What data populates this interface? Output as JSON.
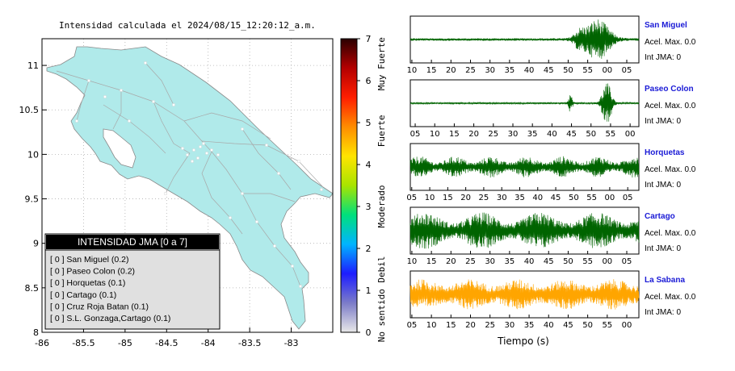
{
  "map": {
    "title": "Intensidad calculada el 2024/08/15_12:20:12_a.m.",
    "x_ticks": [
      "-86",
      "-85.5",
      "-85",
      "-84.5",
      "-84",
      "-83.5",
      "-83"
    ],
    "y_ticks": [
      "11",
      "10.5",
      "10",
      "9.5",
      "9",
      "8.5",
      "8"
    ],
    "xlim": [
      -86,
      -82.5
    ],
    "ylim": [
      8,
      11.3
    ],
    "land_color": "#b0eaea",
    "legend": {
      "title": "INTENSIDAD JMA [0 a 7]",
      "items": [
        "[ 0 ]  San Miguel (0.2)",
        "[ 0 ]  Paseo Colon (0.2)",
        "[ 0 ]  Horquetas (0.1)",
        "[ 0 ]  Cartago (0.1)",
        "[ 0 ]  Cruz Roja Batan (0.1)",
        "[ 0 ]  S.L. Gonzaga,Cartago (0.1)"
      ]
    }
  },
  "colorbar": {
    "ticks": [
      "7",
      "6",
      "5",
      "4",
      "3",
      "2",
      "1",
      "0"
    ],
    "labels": [
      "Muy Fuerte",
      "Fuerte",
      "Moderado",
      "Debil",
      "No sentido"
    ],
    "colors": [
      "#e8e8e8",
      "#7c7cc8",
      "#1d1dff",
      "#00b4ff",
      "#00e07c",
      "#a8e400",
      "#ffe400",
      "#ff8c00",
      "#ff1e00",
      "#b40000",
      "#2a0000"
    ]
  },
  "traces": [
    {
      "name": "San Miguel",
      "accel": "Acel. Max. 0.0",
      "int": "Int JMA: 0",
      "color": "#006400",
      "ticks": [
        "10",
        "15",
        "20",
        "25",
        "30",
        "35",
        "40",
        "45",
        "50",
        "55",
        "00",
        "05"
      ]
    },
    {
      "name": "Paseo Colon",
      "accel": "Acel. Max. 0.0",
      "int": "Int JMA: 0",
      "color": "#006400",
      "ticks": [
        "05",
        "10",
        "15",
        "20",
        "25",
        "30",
        "35",
        "40",
        "45",
        "50",
        "55",
        "00"
      ]
    },
    {
      "name": "Horquetas",
      "accel": "Acel. Max. 0.0",
      "int": "Int JMA: 0",
      "color": "#006400",
      "ticks": [
        "05",
        "10",
        "15",
        "20",
        "25",
        "30",
        "35",
        "40",
        "45",
        "50",
        "55",
        "00",
        "05"
      ]
    },
    {
      "name": "Cartago",
      "accel": "Acel. Max. 0.0",
      "int": "Int JMA: 0",
      "color": "#006400",
      "ticks": [
        "10",
        "15",
        "20",
        "25",
        "30",
        "35",
        "40",
        "45",
        "50",
        "55",
        "00",
        "05"
      ]
    },
    {
      "name": "La Sabana",
      "accel": "Acel. Max. 0.0",
      "int": "Int JMA: 0",
      "color": "#ffa500",
      "ticks": [
        "05",
        "10",
        "15",
        "20",
        "25",
        "30",
        "35",
        "40",
        "45",
        "50",
        "55",
        "00"
      ]
    }
  ],
  "xlabel": "Tiempo (s)"
}
